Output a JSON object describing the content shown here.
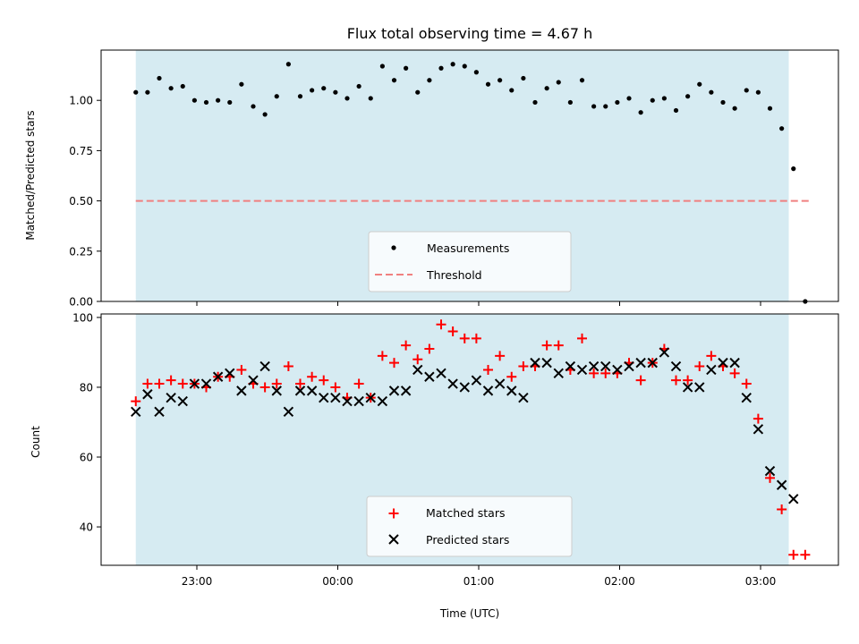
{
  "chart_data": [
    {
      "type": "scatter",
      "title": "Flux total observing time = 4.67 h",
      "xlabel": "",
      "ylabel": "Matched/Predicted stars",
      "ylim": [
        0,
        1.25
      ],
      "yticks": [
        "0.00",
        "0.25",
        "0.50",
        "0.75",
        "1.00"
      ],
      "shaded_interval": [
        "22:34",
        "03:12"
      ],
      "legend_position": "lower-center",
      "series": [
        {
          "name": "Measurements",
          "marker": "dot",
          "color": "#000000",
          "x": [
            "22:34",
            "22:39",
            "22:44",
            "22:49",
            "22:54",
            "22:59",
            "23:04",
            "23:09",
            "23:14",
            "23:19",
            "23:24",
            "23:29",
            "23:34",
            "23:39",
            "23:44",
            "23:49",
            "23:54",
            "23:59",
            "00:04",
            "00:09",
            "00:14",
            "00:19",
            "00:24",
            "00:29",
            "00:34",
            "00:39",
            "00:44",
            "00:49",
            "00:54",
            "00:59",
            "01:04",
            "01:09",
            "01:14",
            "01:19",
            "01:24",
            "01:29",
            "01:34",
            "01:39",
            "01:44",
            "01:49",
            "01:54",
            "01:59",
            "02:04",
            "02:09",
            "02:14",
            "02:19",
            "02:24",
            "02:29",
            "02:34",
            "02:39",
            "02:44",
            "02:49",
            "02:54",
            "02:59",
            "03:04",
            "03:09",
            "03:14"
          ],
          "y": [
            1.04,
            1.04,
            1.11,
            1.06,
            1.07,
            1.0,
            0.99,
            1.0,
            0.99,
            1.08,
            0.97,
            0.93,
            1.02,
            1.18,
            1.02,
            1.05,
            1.06,
            1.04,
            1.01,
            1.07,
            1.01,
            1.17,
            1.1,
            1.16,
            1.04,
            1.1,
            1.16,
            1.18,
            1.17,
            1.14,
            1.08,
            1.1,
            1.05,
            1.11,
            0.99,
            1.06,
            1.09,
            0.99,
            1.1,
            0.97,
            0.97,
            0.99,
            1.01,
            0.94,
            1.0,
            1.01,
            0.95,
            1.02,
            1.08,
            1.04,
            0.99,
            0.96,
            1.05,
            1.04,
            0.96,
            0.86,
            0.66
          ]
        },
        {
          "name": "Threshold",
          "marker": "dashed-line",
          "color": "#f08080",
          "x": [
            "22:34",
            "03:22"
          ],
          "y": [
            0.5,
            0.5
          ]
        },
        {
          "name": "",
          "marker": "dot",
          "color": "#000000",
          "x": [
            "03:19"
          ],
          "y": [
            0.0
          ]
        }
      ]
    },
    {
      "type": "scatter",
      "title": "",
      "xlabel": "Time (UTC)",
      "ylabel": "Count",
      "ylim": [
        29,
        101
      ],
      "yticks": [
        "40",
        "60",
        "80",
        "100"
      ],
      "xticks": [
        "23:00",
        "00:00",
        "01:00",
        "02:00",
        "03:00"
      ],
      "shaded_interval": [
        "22:34",
        "03:12"
      ],
      "legend_position": "lower-center",
      "series": [
        {
          "name": "Matched stars",
          "marker": "plus",
          "color": "#ff0000",
          "x": [
            "22:34",
            "22:39",
            "22:44",
            "22:49",
            "22:54",
            "22:59",
            "23:04",
            "23:09",
            "23:14",
            "23:19",
            "23:24",
            "23:29",
            "23:34",
            "23:39",
            "23:44",
            "23:49",
            "23:54",
            "23:59",
            "00:04",
            "00:09",
            "00:14",
            "00:19",
            "00:24",
            "00:29",
            "00:34",
            "00:39",
            "00:44",
            "00:49",
            "00:54",
            "00:59",
            "01:04",
            "01:09",
            "01:14",
            "01:19",
            "01:24",
            "01:29",
            "01:34",
            "01:39",
            "01:44",
            "01:49",
            "01:54",
            "01:59",
            "02:04",
            "02:09",
            "02:14",
            "02:19",
            "02:24",
            "02:29",
            "02:34",
            "02:39",
            "02:44",
            "02:49",
            "02:54",
            "02:59",
            "03:04",
            "03:09",
            "03:14",
            "03:19"
          ],
          "y": [
            76,
            81,
            81,
            82,
            81,
            81,
            80,
            83,
            83,
            85,
            81,
            80,
            81,
            86,
            81,
            83,
            82,
            80,
            77,
            81,
            77,
            89,
            87,
            92,
            88,
            91,
            98,
            96,
            94,
            94,
            85,
            89,
            83,
            86,
            86,
            92,
            92,
            85,
            94,
            84,
            84,
            84,
            87,
            82,
            87,
            91,
            82,
            82,
            86,
            89,
            86,
            84,
            81,
            71,
            54,
            45,
            32,
            32
          ]
        },
        {
          "name": "Predicted stars",
          "marker": "x",
          "color": "#000000",
          "x": [
            "22:34",
            "22:39",
            "22:44",
            "22:49",
            "22:54",
            "22:59",
            "23:04",
            "23:09",
            "23:14",
            "23:19",
            "23:24",
            "23:29",
            "23:34",
            "23:39",
            "23:44",
            "23:49",
            "23:54",
            "23:59",
            "00:04",
            "00:09",
            "00:14",
            "00:19",
            "00:24",
            "00:29",
            "00:34",
            "00:39",
            "00:44",
            "00:49",
            "00:54",
            "00:59",
            "01:04",
            "01:09",
            "01:14",
            "01:19",
            "01:24",
            "01:29",
            "01:34",
            "01:39",
            "01:44",
            "01:49",
            "01:54",
            "01:59",
            "02:04",
            "02:09",
            "02:14",
            "02:19",
            "02:24",
            "02:29",
            "02:34",
            "02:39",
            "02:44",
            "02:49",
            "02:54",
            "02:59",
            "03:04",
            "03:09",
            "03:14"
          ],
          "y": [
            73,
            78,
            73,
            77,
            76,
            81,
            81,
            83,
            84,
            79,
            82,
            86,
            79,
            73,
            79,
            79,
            77,
            77,
            76,
            76,
            77,
            76,
            79,
            79,
            85,
            83,
            84,
            81,
            80,
            82,
            79,
            81,
            79,
            77,
            87,
            87,
            84,
            86,
            85,
            86,
            86,
            85,
            86,
            87,
            87,
            90,
            86,
            80,
            80,
            85,
            87,
            87,
            77,
            68,
            56,
            52,
            48
          ]
        }
      ]
    }
  ]
}
